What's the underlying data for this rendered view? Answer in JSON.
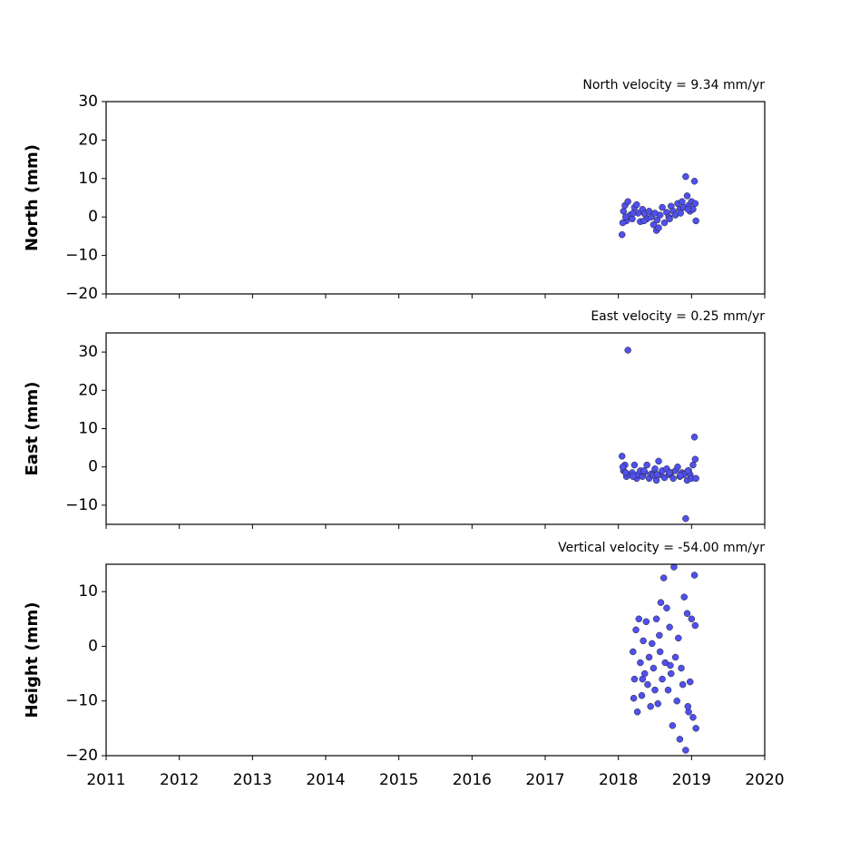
{
  "chart_data": [
    {
      "type": "scatter",
      "title": "North velocity = 9.34 mm/yr",
      "y_label": "North (mm)",
      "color": "#5050ee",
      "x": [
        2018.05,
        2018.07,
        2018.09,
        2018.11,
        2018.13,
        2018.16,
        2018.19,
        2018.22,
        2018.25,
        2018.27,
        2018.3,
        2018.33,
        2018.36,
        2018.39,
        2018.42,
        2018.45,
        2018.48,
        2018.5,
        2018.52,
        2018.55,
        2018.57,
        2018.6,
        2018.63,
        2018.66,
        2018.69,
        2018.72,
        2018.75,
        2018.78,
        2018.81,
        2018.84,
        2018.87,
        2018.89,
        2018.92,
        2018.94,
        2018.96,
        2018.98,
        2019.0,
        2019.02,
        2019.04,
        2019.06,
        2018.06,
        2018.1,
        2018.2,
        2018.35,
        2018.53,
        2018.7,
        2018.85,
        2018.95,
        2019.05
      ],
      "values": [
        -4.6,
        1.5,
        3.0,
        -1.0,
        4.0,
        0.5,
        -0.5,
        2.5,
        3.2,
        1.0,
        -1.2,
        2.0,
        0.8,
        -0.5,
        1.5,
        0.0,
        -2.0,
        1.0,
        -3.5,
        -2.8,
        0.5,
        2.5,
        -1.5,
        1.2,
        0.0,
        2.8,
        1.5,
        0.5,
        3.5,
        2.0,
        4.0,
        2.5,
        10.5,
        5.5,
        3.0,
        1.5,
        4.0,
        2.0,
        9.3,
        -1.0,
        -1.5,
        0.0,
        1.0,
        -1.0,
        -0.8,
        -0.5,
        1.0,
        2.0,
        3.5
      ],
      "xlim": [
        2011,
        2020
      ],
      "xticks": [
        2011,
        2012,
        2013,
        2014,
        2015,
        2016,
        2017,
        2018,
        2019,
        2020
      ],
      "ylim": [
        -20,
        30
      ],
      "yticks": [
        {
          "value": -20,
          "label": "−20"
        },
        {
          "value": -10,
          "label": "−10"
        },
        0,
        10,
        20,
        30
      ]
    },
    {
      "type": "scatter",
      "title": "East velocity = 0.25 mm/yr",
      "y_label": "East (mm)",
      "color": "#5050ee",
      "x": [
        2018.05,
        2018.07,
        2018.09,
        2018.11,
        2018.13,
        2018.16,
        2018.19,
        2018.22,
        2018.25,
        2018.27,
        2018.3,
        2018.33,
        2018.36,
        2018.39,
        2018.42,
        2018.45,
        2018.48,
        2018.5,
        2018.52,
        2018.55,
        2018.57,
        2018.6,
        2018.63,
        2018.66,
        2018.69,
        2018.72,
        2018.75,
        2018.78,
        2018.81,
        2018.84,
        2018.87,
        2018.89,
        2018.92,
        2018.94,
        2018.96,
        2018.98,
        2019.0,
        2019.02,
        2019.04,
        2019.06,
        2018.06,
        2018.1,
        2018.2,
        2018.35,
        2018.53,
        2018.7,
        2018.85,
        2018.95,
        2019.05
      ],
      "values": [
        2.8,
        -1.0,
        0.5,
        -2.5,
        30.5,
        -2.0,
        -1.5,
        0.5,
        -3.0,
        -2.0,
        -1.0,
        -2.5,
        -1.5,
        0.5,
        -3.0,
        -1.8,
        -2.2,
        -0.5,
        -3.5,
        1.5,
        -2.0,
        -1.0,
        -2.8,
        -0.5,
        -2.0,
        -1.5,
        -3.0,
        -1.0,
        0.0,
        -2.5,
        -1.5,
        -2.0,
        -13.5,
        -3.5,
        -1.0,
        -2.0,
        -3.0,
        0.5,
        7.8,
        -3.0,
        0.0,
        -1.5,
        -2.5,
        -1.0,
        -2.0,
        -1.5,
        -2.2,
        -1.0,
        2.0
      ],
      "xlim": [
        2011,
        2020
      ],
      "xticks": [
        2011,
        2012,
        2013,
        2014,
        2015,
        2016,
        2017,
        2018,
        2019,
        2020
      ],
      "ylim": [
        -15,
        35
      ],
      "yticks": [
        {
          "value": -10,
          "label": "−10"
        },
        0,
        10,
        20,
        30
      ]
    },
    {
      "type": "scatter",
      "title": "Vertical velocity = -54.00 mm/yr",
      "y_label": "Height (mm)",
      "color": "#5050ee",
      "x": [
        2018.2,
        2018.22,
        2018.24,
        2018.26,
        2018.28,
        2018.3,
        2018.32,
        2018.34,
        2018.36,
        2018.38,
        2018.4,
        2018.42,
        2018.44,
        2018.46,
        2018.48,
        2018.5,
        2018.52,
        2018.54,
        2018.56,
        2018.58,
        2018.6,
        2018.62,
        2018.64,
        2018.66,
        2018.68,
        2018.7,
        2018.72,
        2018.74,
        2018.76,
        2018.78,
        2018.8,
        2018.82,
        2018.84,
        2018.86,
        2018.88,
        2018.9,
        2018.92,
        2018.94,
        2018.96,
        2018.98,
        2019.0,
        2019.02,
        2019.04,
        2019.06,
        2018.21,
        2018.33,
        2018.57,
        2018.71,
        2018.95,
        2019.05
      ],
      "values": [
        -1.0,
        -6.0,
        3.0,
        -12.0,
        5.0,
        -3.0,
        -9.0,
        1.0,
        -5.0,
        4.5,
        -7.0,
        -2.0,
        -11.0,
        0.5,
        -4.0,
        -8.0,
        5.0,
        -10.5,
        2.0,
        8.0,
        -6.0,
        12.5,
        -3.0,
        7.0,
        -8.0,
        3.5,
        -5.0,
        -14.5,
        14.5,
        -2.0,
        -10.0,
        1.5,
        -17.0,
        -4.0,
        -7.0,
        9.0,
        -19.0,
        6.0,
        -12.0,
        -6.5,
        5.0,
        -13.0,
        13.0,
        -15.0,
        -9.5,
        -6.0,
        -1.0,
        -3.5,
        -11.0,
        3.8
      ],
      "xlim": [
        2011,
        2020
      ],
      "xticks": [
        2011,
        2012,
        2013,
        2014,
        2015,
        2016,
        2017,
        2018,
        2019,
        2020
      ],
      "ylim": [
        -20,
        15
      ],
      "yticks": [
        {
          "value": -20,
          "label": "−20"
        },
        {
          "value": -10,
          "label": "−10"
        },
        0,
        10
      ]
    }
  ]
}
